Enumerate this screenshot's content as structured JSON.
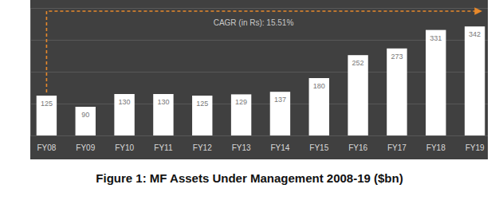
{
  "chart_data": {
    "type": "bar",
    "title": "Figure 1: MF Assets Under Management 2008-19 ($bn)",
    "annotations": [
      "CAGR (in Rs): 15.51%"
    ],
    "categories": [
      "FY08",
      "FY09",
      "FY10",
      "FY11",
      "FY12",
      "FY13",
      "FY14",
      "FY15",
      "FY16",
      "FY17",
      "FY18",
      "FY19"
    ],
    "values": [
      125,
      90,
      130,
      130,
      125,
      129,
      137,
      180,
      252,
      273,
      331,
      342
    ],
    "color": "#ffffff",
    "ylim": [
      0,
      400
    ],
    "yticks": [
      0,
      100,
      200,
      300,
      400
    ],
    "grid": true,
    "data_labels": true,
    "tick_labels": "x"
  }
}
